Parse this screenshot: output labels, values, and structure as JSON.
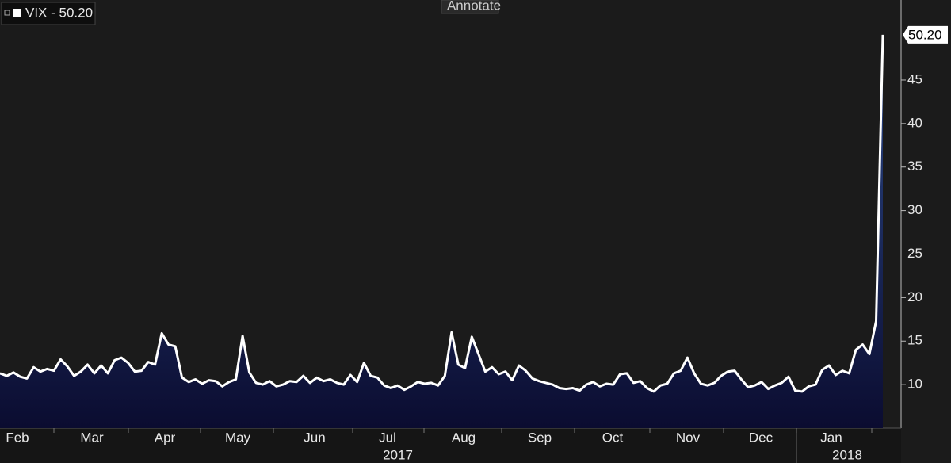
{
  "chart_data": {
    "type": "line",
    "series_label": "VIX - 50.20",
    "button": "Annotate",
    "color": "#ffffff",
    "values": [
      11.3,
      11.0,
      11.4,
      10.9,
      10.7,
      12.0,
      11.5,
      11.8,
      11.6,
      12.9,
      12.1,
      11.0,
      11.5,
      12.3,
      11.3,
      12.2,
      11.3,
      12.8,
      13.1,
      12.5,
      11.5,
      11.6,
      12.6,
      12.3,
      15.9,
      14.6,
      14.4,
      10.8,
      10.3,
      10.6,
      10.1,
      10.5,
      10.4,
      9.8,
      10.3,
      10.6,
      15.6,
      11.4,
      10.2,
      10.0,
      10.4,
      9.8,
      10.0,
      10.4,
      10.3,
      11.0,
      10.2,
      10.8,
      10.4,
      10.6,
      10.2,
      10.0,
      11.1,
      10.3,
      12.5,
      11.0,
      10.8,
      9.9,
      9.6,
      9.9,
      9.4,
      9.8,
      10.3,
      10.1,
      10.2,
      9.9,
      11.0,
      16.0,
      12.3,
      11.9,
      15.5,
      13.5,
      11.5,
      12.0,
      11.2,
      11.5,
      10.5,
      12.2,
      11.6,
      10.7,
      10.4,
      10.2,
      10.0,
      9.6,
      9.5,
      9.6,
      9.3,
      10.0,
      10.3,
      9.8,
      10.1,
      10.0,
      11.2,
      11.3,
      10.2,
      10.4,
      9.6,
      9.2,
      9.9,
      10.1,
      11.3,
      11.6,
      13.1,
      11.3,
      10.1,
      9.9,
      10.2,
      11.0,
      11.5,
      11.6,
      10.6,
      9.7,
      9.9,
      10.3,
      9.5,
      9.9,
      10.2,
      10.9,
      9.3,
      9.2,
      9.8,
      10.0,
      11.7,
      12.2,
      11.1,
      11.6,
      11.3,
      14.0,
      14.6,
      13.5,
      17.3,
      50.2
    ],
    "last_value": {
      "value": 50.2,
      "label": "50.20"
    },
    "months": [
      "Feb",
      "Mar",
      "Apr",
      "May",
      "Jun",
      "Jul",
      "Aug",
      "Sep",
      "Oct",
      "Nov",
      "Dec",
      "Jan"
    ],
    "years": [
      "2017",
      "2018"
    ],
    "ylim": [
      5,
      54.2
    ],
    "yticks": [
      10,
      15,
      20,
      25,
      30,
      35,
      40,
      45
    ]
  }
}
